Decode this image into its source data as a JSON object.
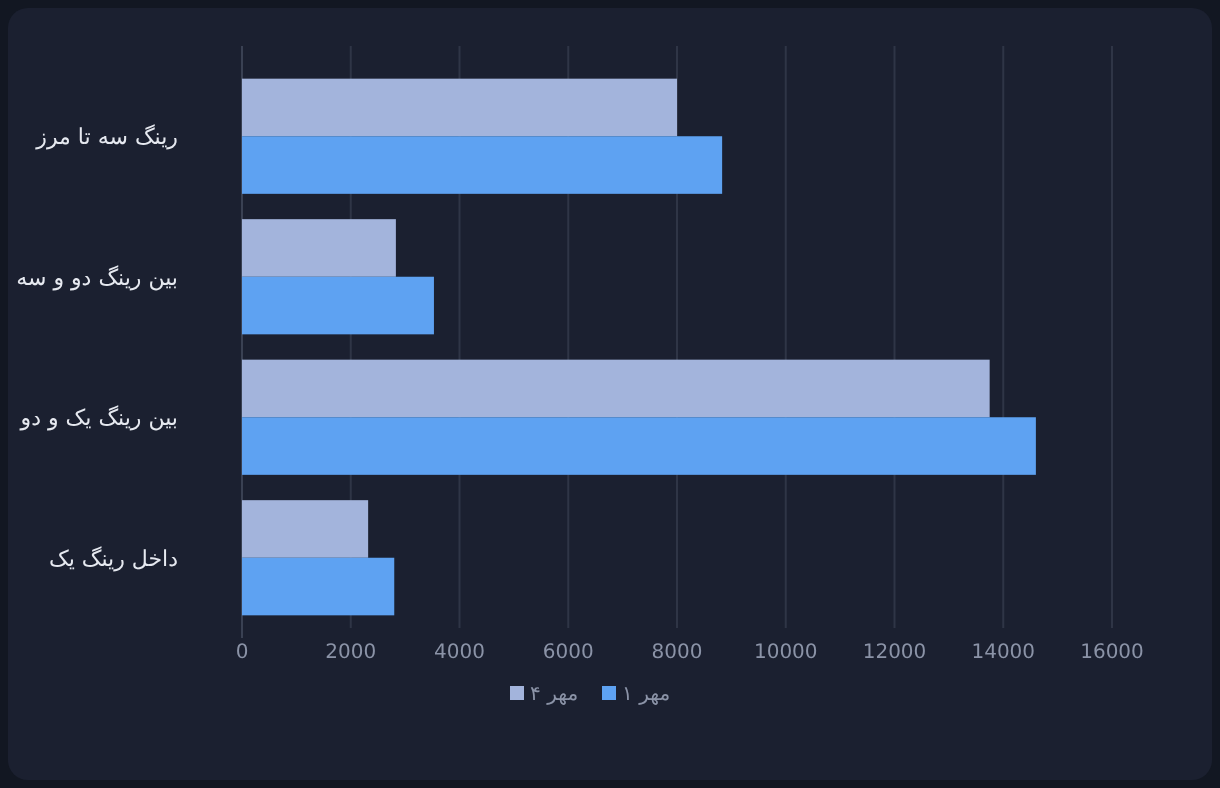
{
  "chart_data": {
    "type": "bar",
    "orientation": "horizontal",
    "categories": [
      "رینگ سه تا مرز",
      "بین رینگ دو و سه",
      "بین رینگ یک و دو",
      "داخل رینگ یک"
    ],
    "series": [
      {
        "name": "۴ مهر",
        "color": "#a3b4dc",
        "values": [
          8000,
          2830,
          13750,
          2320
        ]
      },
      {
        "name": "۱ مهر",
        "color": "#5ea2f2",
        "values": [
          8830,
          3530,
          14600,
          2800
        ]
      }
    ],
    "xlim": [
      0,
      16000
    ],
    "xticks": [
      0,
      2000,
      4000,
      6000,
      8000,
      10000,
      12000,
      14000,
      16000
    ],
    "grid": "x",
    "legend": "bottom"
  }
}
